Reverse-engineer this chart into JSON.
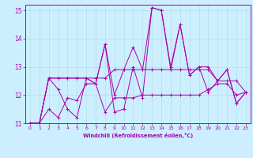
{
  "xlabel": "Windchill (Refroidissement éolien,°C)",
  "bg_color": "#cceeff",
  "line_color": "#aa00aa",
  "grid_color": "#aadddd",
  "spine_color": "#aa00aa",
  "xlim": [
    -0.5,
    23.5
  ],
  "ylim": [
    11,
    15.2
  ],
  "yticks": [
    11,
    12,
    13,
    14,
    15
  ],
  "xticks": [
    0,
    1,
    2,
    3,
    4,
    5,
    6,
    7,
    8,
    9,
    10,
    11,
    12,
    13,
    14,
    15,
    16,
    17,
    18,
    19,
    20,
    21,
    22,
    23
  ],
  "series": [
    [
      11.0,
      11.0,
      12.6,
      12.6,
      12.6,
      12.6,
      12.6,
      12.4,
      13.8,
      12.0,
      12.9,
      13.7,
      12.9,
      15.1,
      15.0,
      13.0,
      14.5,
      12.7,
      13.0,
      13.0,
      12.5,
      12.9,
      11.7,
      12.1
    ],
    [
      11.0,
      11.0,
      12.6,
      12.2,
      11.5,
      11.2,
      12.6,
      12.4,
      13.8,
      11.4,
      11.5,
      13.0,
      11.9,
      15.1,
      15.0,
      12.9,
      14.5,
      12.7,
      13.0,
      12.1,
      12.5,
      12.9,
      11.7,
      12.1
    ],
    [
      11.0,
      11.0,
      11.5,
      11.2,
      11.9,
      11.8,
      12.4,
      12.4,
      11.4,
      11.9,
      11.9,
      11.9,
      12.0,
      12.0,
      12.0,
      12.0,
      12.0,
      12.0,
      12.0,
      12.2,
      12.4,
      12.4,
      12.0,
      12.1
    ],
    [
      11.0,
      11.0,
      12.6,
      12.6,
      12.6,
      12.6,
      12.6,
      12.6,
      12.6,
      12.9,
      12.9,
      12.9,
      12.9,
      12.9,
      12.9,
      12.9,
      12.9,
      12.9,
      12.9,
      12.9,
      12.5,
      12.5,
      12.5,
      12.1
    ]
  ]
}
